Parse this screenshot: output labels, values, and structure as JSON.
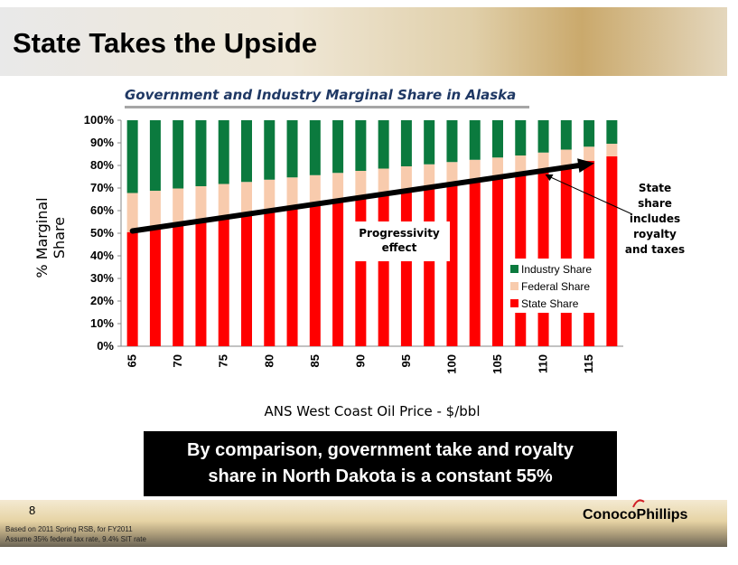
{
  "slide": {
    "title": "State Takes the Upside",
    "page_number": "8",
    "logo": "ConocoPhillips",
    "callout_line1": "By comparison, government take and royalty",
    "callout_line2": "share in North Dakota is a constant 55%",
    "footnote_line1": "Based on 2011 Spring RSB, for FY2011",
    "footnote_line2": "Assume 35% federal tax rate, 9.4% SIT rate"
  },
  "chart_data": {
    "type": "bar",
    "stacked": true,
    "title": "Government and Industry Marginal Share in Alaska",
    "xlabel": "ANS West Coast Oil Price - $/bbl",
    "ylabel": "% Marginal Share",
    "ylim": [
      0,
      100
    ],
    "y_ticks": [
      "0%",
      "10%",
      "20%",
      "30%",
      "40%",
      "50%",
      "60%",
      "70%",
      "80%",
      "90%",
      "100%"
    ],
    "x_ticks": [
      "65",
      "70",
      "75",
      "80",
      "85",
      "90",
      "95",
      "100",
      "105",
      "110",
      "115"
    ],
    "categories": [
      65,
      67.5,
      70,
      72.5,
      75,
      77.5,
      80,
      82.5,
      85,
      87.5,
      90,
      92.5,
      95,
      97.5,
      100,
      102.5,
      105,
      107.5,
      110,
      112.5,
      115,
      117.5
    ],
    "series": [
      {
        "name": "State Share",
        "color": "#ff0000",
        "values": [
          50.5,
          52,
          53.5,
          55,
          56.5,
          58,
          59.5,
          61,
          62.5,
          64,
          65.5,
          67,
          68.5,
          70,
          71.5,
          73,
          74.5,
          76,
          78,
          80,
          82,
          84
        ]
      },
      {
        "name": "Federal Share",
        "color": "#f8cbad",
        "values": [
          17.3,
          16.8,
          16.3,
          15.8,
          15.3,
          14.7,
          14.2,
          13.7,
          13.2,
          12.7,
          12.1,
          11.6,
          11.1,
          10.5,
          10,
          9.5,
          9,
          8.4,
          7.7,
          7,
          6.3,
          5.6
        ]
      },
      {
        "name": "Industry Share",
        "color": "#0b7a3e",
        "values": [
          32.2,
          31.2,
          30.2,
          29.2,
          28.2,
          27.3,
          26.3,
          25.3,
          24.3,
          23.3,
          22.4,
          21.4,
          20.4,
          19.5,
          18.5,
          17.5,
          16.5,
          15.6,
          14.3,
          13,
          11.7,
          10.4
        ]
      }
    ],
    "legend_position": "right-middle",
    "annotations": {
      "progressivity": [
        "Progressivity",
        "effect"
      ],
      "state_note": [
        "State",
        "share",
        "includes",
        "royalty",
        "and taxes"
      ]
    },
    "trend_arrow": {
      "from": [
        65,
        51
      ],
      "to": [
        115,
        81
      ]
    },
    "grid": false
  }
}
